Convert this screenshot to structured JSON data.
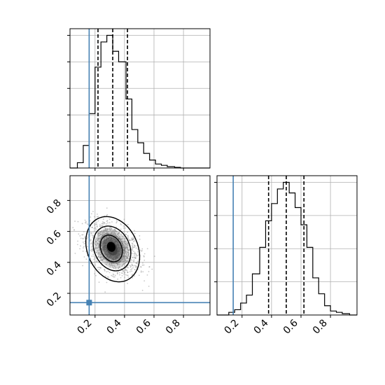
{
  "colors": {
    "truth": "#4682b4",
    "hist": "#000000",
    "grid": "#b0b0b0",
    "points": "#9a9a9a"
  },
  "chart_data": [
    {
      "panel": "top-left",
      "type": "histogram",
      "x_range": [
        0.03,
        0.98
      ],
      "y_range": [
        0,
        1.05
      ],
      "y_ticks": [
        0.2,
        0.4,
        0.6,
        0.8,
        1.0
      ],
      "y_tick_labels_visible": false,
      "x_tick_labels_visible": false,
      "grid": true,
      "bins": [
        {
          "x0": 0.03,
          "x1": 0.08,
          "y": 0.0
        },
        {
          "x0": 0.08,
          "x1": 0.12,
          "y": 0.04
        },
        {
          "x0": 0.12,
          "x1": 0.16,
          "y": 0.17
        },
        {
          "x0": 0.16,
          "x1": 0.2,
          "y": 0.41
        },
        {
          "x0": 0.2,
          "x1": 0.24,
          "y": 0.76
        },
        {
          "x0": 0.24,
          "x1": 0.28,
          "y": 0.95
        },
        {
          "x0": 0.28,
          "x1": 0.32,
          "y": 1.0
        },
        {
          "x0": 0.32,
          "x1": 0.36,
          "y": 0.88
        },
        {
          "x0": 0.36,
          "x1": 0.41,
          "y": 0.8
        },
        {
          "x0": 0.41,
          "x1": 0.45,
          "y": 0.52
        },
        {
          "x0": 0.45,
          "x1": 0.49,
          "y": 0.29
        },
        {
          "x0": 0.49,
          "x1": 0.53,
          "y": 0.19
        },
        {
          "x0": 0.53,
          "x1": 0.57,
          "y": 0.11
        },
        {
          "x0": 0.57,
          "x1": 0.61,
          "y": 0.06
        },
        {
          "x0": 0.61,
          "x1": 0.65,
          "y": 0.03
        },
        {
          "x0": 0.65,
          "x1": 0.69,
          "y": 0.02
        },
        {
          "x0": 0.69,
          "x1": 0.74,
          "y": 0.01
        },
        {
          "x0": 0.74,
          "x1": 0.78,
          "y": 0.005
        },
        {
          "x0": 0.78,
          "x1": 0.98,
          "y": 0.0
        }
      ],
      "quantiles": [
        0.22,
        0.32,
        0.42
      ],
      "truth": 0.16
    },
    {
      "panel": "bottom-left",
      "type": "scatter-density",
      "x_range": [
        0.03,
        0.98
      ],
      "y_range": [
        0.06,
        0.96
      ],
      "x_ticks": [
        0.2,
        0.4,
        0.6,
        0.8
      ],
      "x_tick_labels": [
        "0.2",
        "0.4",
        "0.6",
        "0.8"
      ],
      "y_ticks": [
        0.2,
        0.4,
        0.6,
        0.8
      ],
      "y_tick_labels": [
        "0.2",
        "0.4",
        "0.6",
        "0.8"
      ],
      "grid": true,
      "points_center": [
        0.32,
        0.49
      ],
      "points_spread": [
        0.09,
        0.1
      ],
      "contours": [
        {
          "level": "outer",
          "cx": 0.32,
          "cy": 0.485,
          "rx": 0.17,
          "ry": 0.22,
          "rot": -25
        },
        {
          "level": "mid",
          "cx": 0.315,
          "cy": 0.49,
          "rx": 0.12,
          "ry": 0.15,
          "rot": -25
        },
        {
          "level": "inner",
          "cx": 0.31,
          "cy": 0.49,
          "rx": 0.07,
          "ry": 0.09,
          "rot": -25
        },
        {
          "level": "core",
          "cx": 0.31,
          "cy": 0.5,
          "rx": 0.025,
          "ry": 0.03,
          "rot": -20
        }
      ],
      "truth": {
        "x": 0.16,
        "y": 0.14
      }
    },
    {
      "panel": "bottom-right",
      "type": "histogram",
      "x_range": [
        0.03,
        0.98
      ],
      "y_range": [
        0,
        1.05
      ],
      "y_ticks": [
        0.25,
        0.5,
        0.75,
        1.0
      ],
      "y_tick_labels_visible": false,
      "x_ticks": [
        0.2,
        0.4,
        0.6,
        0.8
      ],
      "x_tick_labels": [
        "0.2",
        "0.4",
        "0.6",
        "0.8"
      ],
      "grid": true,
      "bins": [
        {
          "x0": 0.03,
          "x1": 0.11,
          "y": 0.0
        },
        {
          "x0": 0.11,
          "x1": 0.15,
          "y": 0.02
        },
        {
          "x0": 0.15,
          "x1": 0.19,
          "y": 0.04
        },
        {
          "x0": 0.19,
          "x1": 0.23,
          "y": 0.09
        },
        {
          "x0": 0.23,
          "x1": 0.27,
          "y": 0.15
        },
        {
          "x0": 0.27,
          "x1": 0.32,
          "y": 0.31
        },
        {
          "x0": 0.32,
          "x1": 0.36,
          "y": 0.51
        },
        {
          "x0": 0.36,
          "x1": 0.4,
          "y": 0.71
        },
        {
          "x0": 0.4,
          "x1": 0.44,
          "y": 0.84
        },
        {
          "x0": 0.44,
          "x1": 0.48,
          "y": 0.95
        },
        {
          "x0": 0.48,
          "x1": 0.52,
          "y": 1.0
        },
        {
          "x0": 0.52,
          "x1": 0.56,
          "y": 0.92
        },
        {
          "x0": 0.56,
          "x1": 0.6,
          "y": 0.81
        },
        {
          "x0": 0.6,
          "x1": 0.64,
          "y": 0.68
        },
        {
          "x0": 0.64,
          "x1": 0.68,
          "y": 0.51
        },
        {
          "x0": 0.68,
          "x1": 0.72,
          "y": 0.28
        },
        {
          "x0": 0.72,
          "x1": 0.76,
          "y": 0.16
        },
        {
          "x0": 0.76,
          "x1": 0.8,
          "y": 0.07
        },
        {
          "x0": 0.8,
          "x1": 0.84,
          "y": 0.03
        },
        {
          "x0": 0.84,
          "x1": 0.88,
          "y": 0.02
        },
        {
          "x0": 0.88,
          "x1": 0.93,
          "y": 0.01
        },
        {
          "x0": 0.93,
          "x1": 0.98,
          "y": 0.0
        }
      ],
      "quantiles": [
        0.38,
        0.5,
        0.62
      ],
      "truth": 0.14
    }
  ]
}
